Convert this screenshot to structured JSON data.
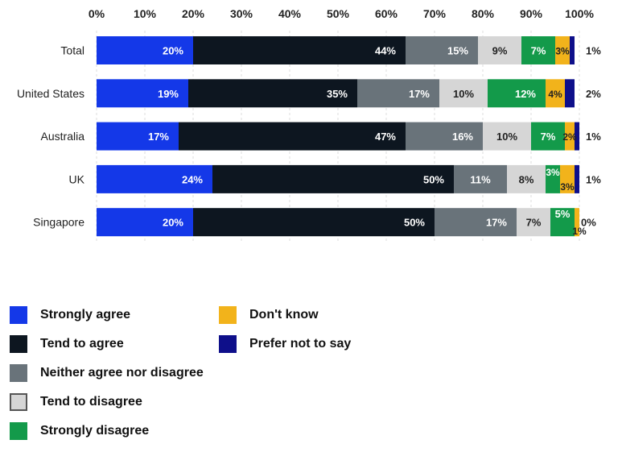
{
  "chart_data": {
    "type": "bar",
    "orientation": "horizontal",
    "stacked": true,
    "title": "",
    "xlabel": "",
    "ylabel": "",
    "xlim": [
      0,
      100
    ],
    "x_ticks": [
      "0%",
      "10%",
      "20%",
      "30%",
      "40%",
      "50%",
      "60%",
      "70%",
      "80%",
      "90%",
      "100%"
    ],
    "grid": true,
    "legend_position": "bottom",
    "categories": [
      "Total",
      "United States",
      "Australia",
      "UK",
      "Singapore"
    ],
    "series": [
      {
        "name": "Strongly agree",
        "color": "#1438e8",
        "label_color": "#ffffff",
        "values": [
          20,
          19,
          17,
          24,
          20
        ],
        "labels": [
          "20%",
          "19%",
          "17%",
          "24%",
          "20%"
        ]
      },
      {
        "name": "Tend to agree",
        "color": "#0d1620",
        "label_color": "#ffffff",
        "values": [
          44,
          35,
          47,
          50,
          50
        ],
        "labels": [
          "44%",
          "35%",
          "47%",
          "50%",
          "50%"
        ]
      },
      {
        "name": "Neither agree nor disagree",
        "color": "#69737a",
        "label_color": "#ffffff",
        "values": [
          15,
          17,
          16,
          11,
          17
        ],
        "labels": [
          "15%",
          "17%",
          "16%",
          "11%",
          "17%"
        ]
      },
      {
        "name": "Tend to disagree",
        "color": "#d6d6d6",
        "label_color": "#222222",
        "values": [
          9,
          10,
          10,
          8,
          7
        ],
        "labels": [
          "9%",
          "10%",
          "10%",
          "8%",
          "7%"
        ]
      },
      {
        "name": "Strongly disagree",
        "color": "#139a4a",
        "label_color": "#ffffff",
        "values": [
          7,
          12,
          7,
          3,
          5
        ],
        "labels": [
          "7%",
          "12%",
          "7%",
          "3%",
          "5%"
        ]
      },
      {
        "name": "Don't know",
        "color": "#f2b31b",
        "label_color": "#222222",
        "values": [
          3,
          4,
          2,
          3,
          1
        ],
        "labels": [
          "3%",
          "4%",
          "2%",
          "3%",
          "1%"
        ]
      },
      {
        "name": "Prefer not to say",
        "color": "#0e0f8a",
        "label_color": "#222222",
        "values": [
          1,
          2,
          1,
          1,
          0
        ],
        "labels": [
          "1%",
          "2%",
          "1%",
          "1%",
          "0%"
        ]
      }
    ]
  },
  "legend": {
    "items": [
      {
        "label": "Strongly agree",
        "color": "#1438e8"
      },
      {
        "label": "Tend to agree",
        "color": "#0d1620"
      },
      {
        "label": "Neither agree nor disagree",
        "color": "#69737a"
      },
      {
        "label": "Tend to disagree",
        "color": "#d6d6d6"
      },
      {
        "label": "Strongly disagree",
        "color": "#139a4a"
      },
      {
        "label": "Don't know",
        "color": "#f2b31b"
      },
      {
        "label": "Prefer not to say",
        "color": "#0e0f8a"
      }
    ]
  }
}
